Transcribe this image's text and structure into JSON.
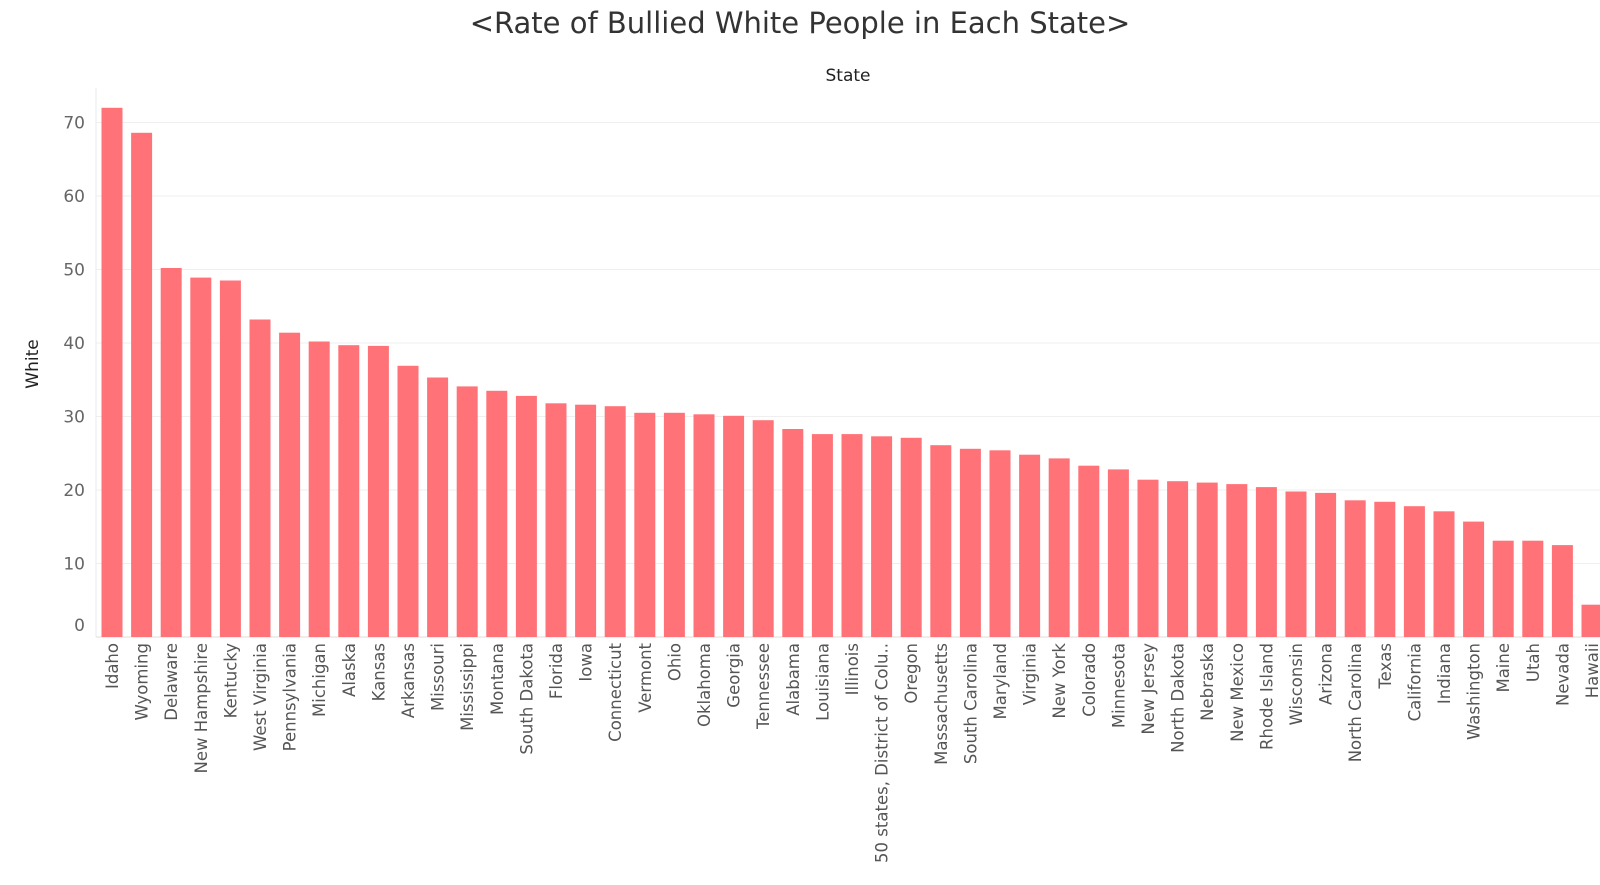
{
  "chart_data": {
    "type": "bar",
    "title": "<Rate of Bullied White People in Each State>",
    "xlabel": "State",
    "ylabel": "White",
    "ylim": [
      0,
      75
    ],
    "yticks": [
      0,
      10,
      20,
      30,
      40,
      50,
      60,
      70
    ],
    "grid": true,
    "bar_color": "#ff7378",
    "categories": [
      "Idaho",
      "Wyoming",
      "Delaware",
      "New Hampshire",
      "Kentucky",
      "West Virginia",
      "Pennsylvania",
      "Michigan",
      "Alaska",
      "Kansas",
      "Arkansas",
      "Missouri",
      "Mississippi",
      "Montana",
      "South Dakota",
      "Florida",
      "Iowa",
      "Connecticut",
      "Vermont",
      "Ohio",
      "Oklahoma",
      "Georgia",
      "Tennessee",
      "Alabama",
      "Louisiana",
      "Illinois",
      "50 states, District of Colu..",
      "Oregon",
      "Massachusetts",
      "South Carolina",
      "Maryland",
      "Virginia",
      "New York",
      "Colorado",
      "Minnesota",
      "New Jersey",
      "North Dakota",
      "Nebraska",
      "New Mexico",
      "Rhode Island",
      "Wisconsin",
      "Arizona",
      "North Carolina",
      "Texas",
      "California",
      "Indiana",
      "Washington",
      "Maine",
      "Utah",
      "Nevada",
      "Hawaii"
    ],
    "values": [
      72.0,
      68.6,
      50.2,
      48.9,
      48.5,
      43.2,
      41.4,
      40.2,
      39.7,
      39.6,
      36.9,
      35.3,
      34.1,
      33.5,
      32.8,
      31.8,
      31.6,
      31.4,
      30.5,
      30.5,
      30.3,
      30.1,
      29.5,
      28.3,
      27.6,
      27.6,
      27.3,
      27.1,
      26.1,
      25.6,
      25.4,
      24.8,
      24.3,
      23.3,
      22.8,
      21.4,
      21.2,
      21.0,
      20.8,
      20.4,
      19.8,
      19.6,
      18.6,
      18.4,
      17.8,
      17.1,
      15.7,
      13.1,
      13.1,
      12.5,
      4.4
    ]
  }
}
